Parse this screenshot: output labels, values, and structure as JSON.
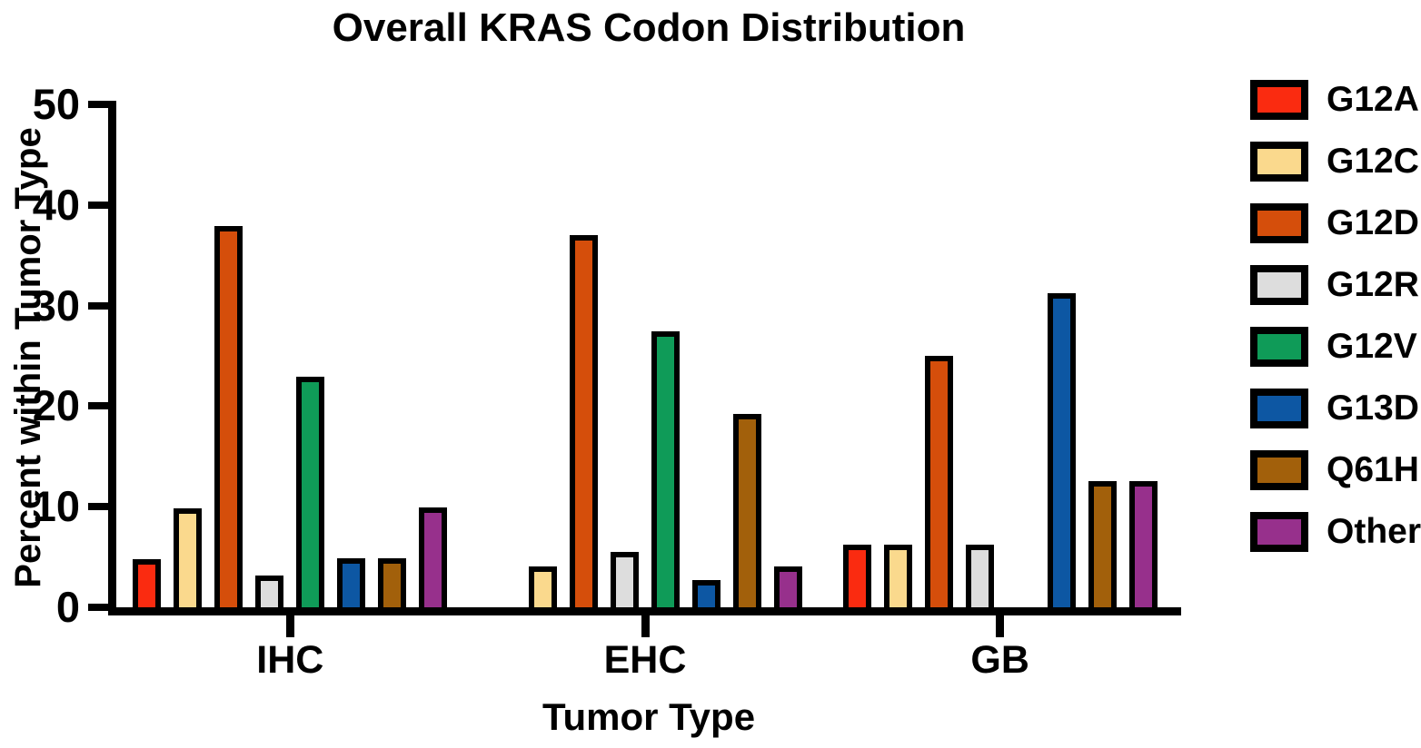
{
  "chart_data": {
    "type": "bar",
    "title": "Overall KRAS Codon Distribution",
    "xlabel": "Tumor Type",
    "ylabel": "Percent within Tumor Type",
    "ylim": [
      0,
      50
    ],
    "yticks": [
      0,
      10,
      20,
      30,
      40,
      50
    ],
    "grid": false,
    "legend_position": "right",
    "bar_outline_color": "#000000",
    "categories": [
      "IHC",
      "EHC",
      "GB"
    ],
    "series": [
      {
        "name": "G12A",
        "color": "#fa2b10",
        "values": [
          4.8,
          0,
          6.2
        ]
      },
      {
        "name": "G12C",
        "color": "#fad98d",
        "values": [
          9.8,
          4.1,
          6.2
        ]
      },
      {
        "name": "G12D",
        "color": "#d54e0b",
        "values": [
          37.9,
          37.0,
          25.0
        ]
      },
      {
        "name": "G12R",
        "color": "#dddddd",
        "values": [
          3.2,
          5.5,
          6.2
        ]
      },
      {
        "name": "G12V",
        "color": "#0f9b58",
        "values": [
          22.9,
          27.4,
          0
        ]
      },
      {
        "name": "G13D",
        "color": "#0d57a3",
        "values": [
          4.9,
          2.7,
          31.2
        ]
      },
      {
        "name": "Q61H",
        "color": "#a2600b",
        "values": [
          4.9,
          19.2,
          12.5
        ]
      },
      {
        "name": "Other",
        "color": "#97308c",
        "values": [
          9.9,
          4.1,
          12.5
        ]
      }
    ]
  }
}
